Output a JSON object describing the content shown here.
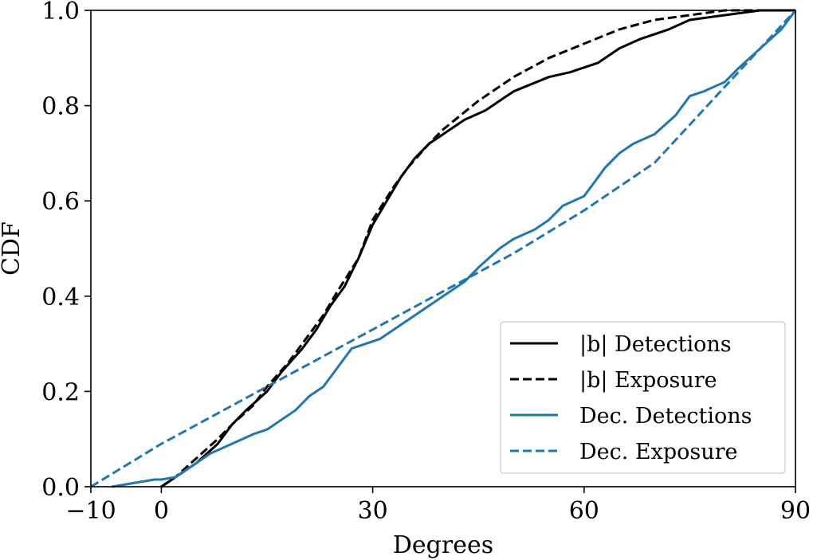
{
  "chart_data": {
    "type": "line",
    "title": "",
    "xlabel": "Degrees",
    "ylabel": "CDF",
    "xlim": [
      -10,
      90
    ],
    "ylim": [
      0.0,
      1.0
    ],
    "xticks": [
      {
        "value": -10,
        "label": "−10"
      },
      {
        "value": 0,
        "label": "0"
      },
      {
        "value": 30,
        "label": "30"
      },
      {
        "value": 60,
        "label": "60"
      },
      {
        "value": 90,
        "label": "90"
      }
    ],
    "yticks": [
      {
        "value": 0.0,
        "label": "0.0"
      },
      {
        "value": 0.2,
        "label": "0.2"
      },
      {
        "value": 0.4,
        "label": "0.4"
      },
      {
        "value": 0.6,
        "label": "0.6"
      },
      {
        "value": 0.8,
        "label": "0.8"
      },
      {
        "value": 1.0,
        "label": "1.0"
      }
    ],
    "grid": false,
    "legend_position": "lower-right",
    "series": [
      {
        "name": "|b| Detections",
        "color": "#000000",
        "style": "solid",
        "x": [
          0,
          1,
          2,
          3,
          5,
          8,
          10,
          12,
          15,
          17,
          20,
          22,
          24,
          26,
          28,
          30,
          32,
          34,
          36,
          38,
          40,
          43,
          46,
          50,
          55,
          58,
          62,
          65,
          68,
          72,
          75,
          80,
          85,
          90
        ],
        "y": [
          0.0,
          0.01,
          0.02,
          0.03,
          0.05,
          0.09,
          0.13,
          0.16,
          0.2,
          0.24,
          0.29,
          0.33,
          0.38,
          0.42,
          0.48,
          0.55,
          0.6,
          0.65,
          0.69,
          0.72,
          0.74,
          0.77,
          0.79,
          0.83,
          0.86,
          0.87,
          0.89,
          0.92,
          0.94,
          0.96,
          0.98,
          0.99,
          1.0,
          1.0
        ]
      },
      {
        "name": "|b| Exposure",
        "color": "#000000",
        "style": "dashed",
        "x": [
          0,
          2,
          5,
          8,
          10,
          13,
          15,
          18,
          20,
          23,
          25,
          28,
          30,
          33,
          35,
          38,
          40,
          45,
          50,
          55,
          60,
          65,
          70,
          75,
          80,
          85,
          90
        ],
        "y": [
          0.0,
          0.02,
          0.06,
          0.1,
          0.13,
          0.17,
          0.21,
          0.26,
          0.3,
          0.36,
          0.41,
          0.48,
          0.56,
          0.63,
          0.67,
          0.72,
          0.75,
          0.81,
          0.86,
          0.9,
          0.93,
          0.96,
          0.98,
          0.99,
          1.0,
          1.0,
          1.0
        ]
      },
      {
        "name": "Dec. Detections",
        "color": "#1f77b4",
        "style": "solid",
        "x": [
          -7,
          -5,
          -3,
          -1,
          0,
          2,
          3,
          5,
          7,
          10,
          13,
          15,
          17,
          19,
          21,
          23,
          25,
          27,
          29,
          31,
          33,
          35,
          37,
          40,
          43,
          45,
          48,
          50,
          53,
          55,
          57,
          60,
          62,
          63,
          65,
          67,
          70,
          73,
          75,
          77,
          80,
          82,
          85,
          88,
          90
        ],
        "y": [
          0.0,
          0.005,
          0.01,
          0.015,
          0.015,
          0.02,
          0.03,
          0.05,
          0.07,
          0.09,
          0.11,
          0.12,
          0.14,
          0.16,
          0.19,
          0.21,
          0.25,
          0.29,
          0.3,
          0.31,
          0.33,
          0.35,
          0.37,
          0.4,
          0.43,
          0.46,
          0.5,
          0.52,
          0.54,
          0.56,
          0.59,
          0.61,
          0.65,
          0.67,
          0.7,
          0.72,
          0.74,
          0.78,
          0.82,
          0.83,
          0.85,
          0.88,
          0.92,
          0.96,
          1.0
        ]
      },
      {
        "name": "Dec. Exposure",
        "color": "#1f77b4",
        "style": "dashed",
        "x": [
          -10,
          0,
          10,
          20,
          30,
          40,
          50,
          60,
          70,
          80,
          90
        ],
        "y": [
          0.0,
          0.09,
          0.17,
          0.25,
          0.33,
          0.41,
          0.49,
          0.58,
          0.68,
          0.84,
          1.0
        ]
      }
    ]
  }
}
